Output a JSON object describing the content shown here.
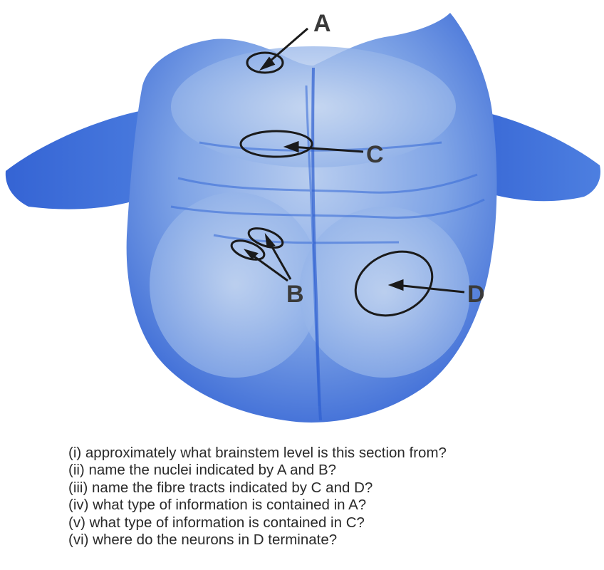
{
  "labels": {
    "a": "A",
    "b": "B",
    "c": "C",
    "d": "D"
  },
  "questions": [
    "(i) approximately what brainstem level is this section from?",
    "(ii) name the nuclei indicated by A and B?",
    "(iii) name the fibre tracts indicated by C and D?",
    "(iv) what type of information is contained in A?",
    "(v) what type of information is contained in C?",
    "(vi) where do the neurons in D terminate?"
  ],
  "colors": {
    "stain_dark": "#2f5fd0",
    "stain_mid": "#4a7fe0",
    "stain_light": "#a9c3ea",
    "pale": "#c9d8ee",
    "outline": "#1a1a1a",
    "text": "#2a2a2a"
  }
}
